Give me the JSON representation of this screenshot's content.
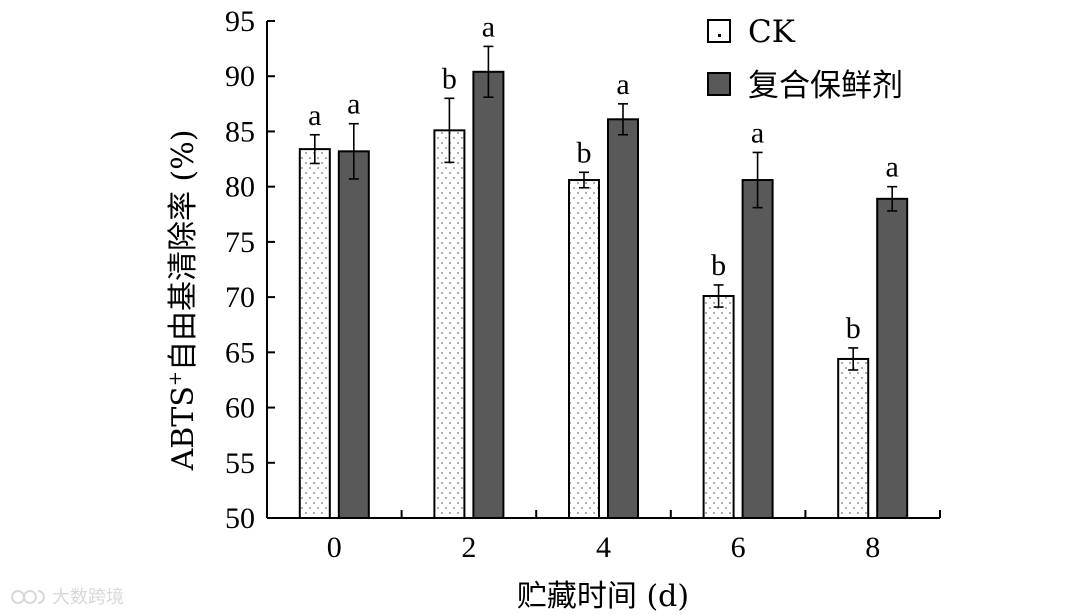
{
  "chart_data": {
    "type": "bar",
    "categories": [
      "0",
      "2",
      "4",
      "6",
      "8"
    ],
    "series": [
      {
        "name": "CK",
        "values": [
          83.4,
          85.1,
          80.6,
          70.1,
          64.4
        ],
        "errors": [
          1.3,
          2.9,
          0.7,
          1.0,
          1.0
        ],
        "letters": [
          "a",
          "b",
          "b",
          "b",
          "b"
        ],
        "fill": "#ffffff",
        "pattern": "dotted"
      },
      {
        "name": "复合保鲜剂",
        "values": [
          83.2,
          90.4,
          86.1,
          80.6,
          78.9
        ],
        "errors": [
          2.5,
          2.3,
          1.4,
          2.5,
          1.1
        ],
        "letters": [
          "a",
          "a",
          "a",
          "a",
          "a"
        ],
        "fill": "#595959"
      }
    ],
    "yticks": [
      "50",
      "55",
      "60",
      "65",
      "70",
      "75",
      "80",
      "85",
      "90",
      "95"
    ],
    "xlabel": "贮藏时间 (d)",
    "ylabel_main": "ABTS",
    "ylabel_sup": "+",
    "ylabel_rest": "自由基清除率 (%)",
    "ylim": [
      50,
      95
    ],
    "grid": false,
    "legend_position": "top-right"
  },
  "watermark": {
    "icon": "logo-icon",
    "text": "大数跨境"
  }
}
